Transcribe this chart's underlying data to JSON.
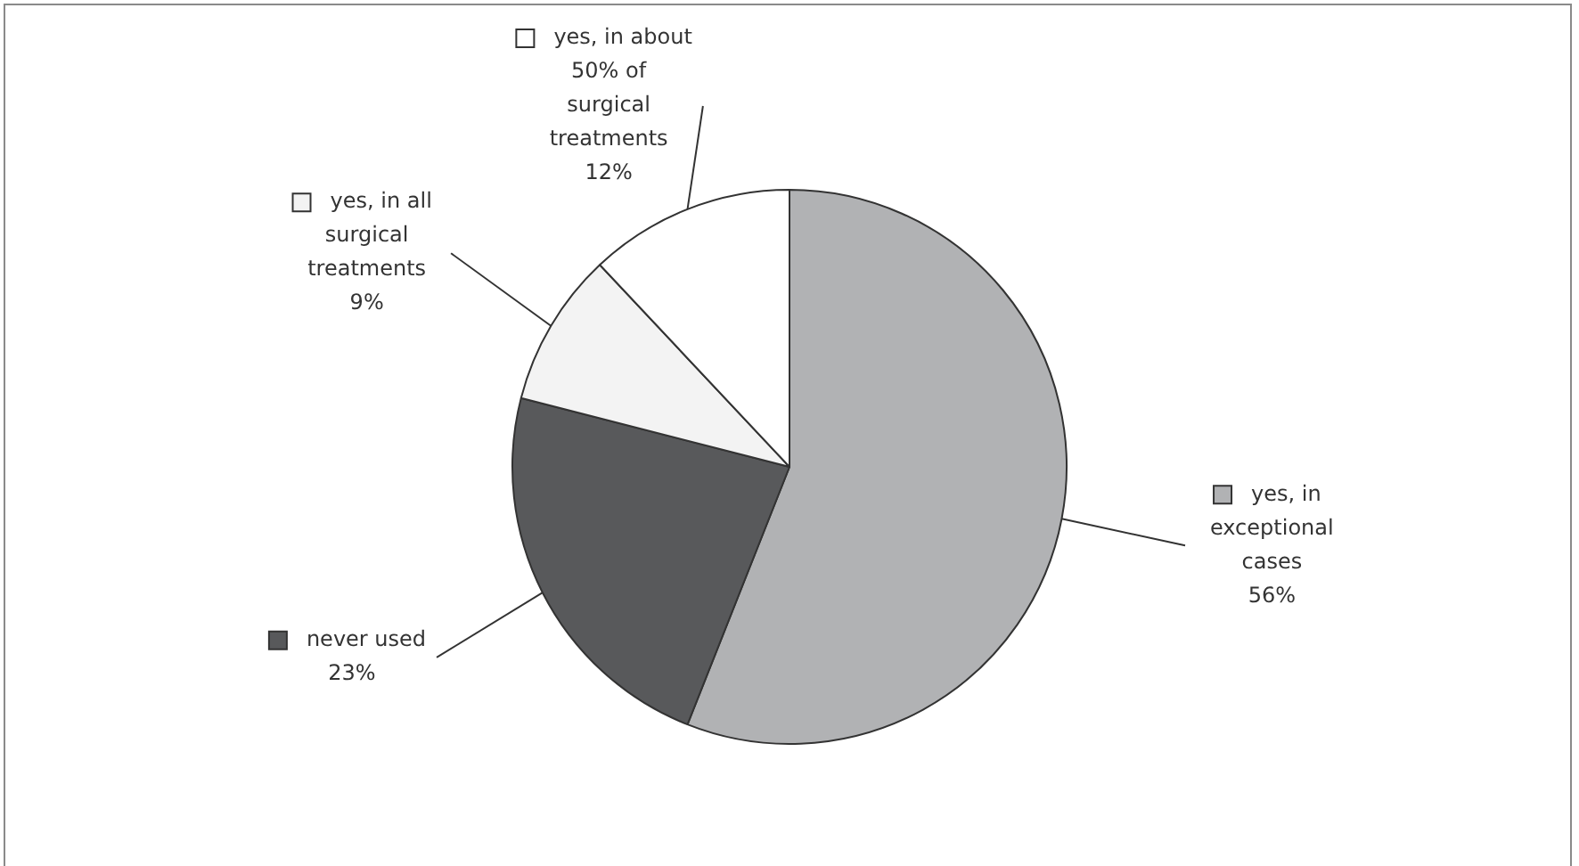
{
  "chart_data": {
    "type": "pie",
    "categories": [
      "yes, in exceptional cases",
      "never used",
      "yes, in all surgical treatments",
      "yes, in about 50% of surgical treatments"
    ],
    "values": [
      56,
      23,
      9,
      12
    ],
    "colors": [
      "#b1b2b4",
      "#58595b",
      "#f3f3f3",
      "#ffffff"
    ],
    "value_labels": [
      "56%",
      "23%",
      "9%",
      "12%"
    ],
    "legend": "right"
  }
}
